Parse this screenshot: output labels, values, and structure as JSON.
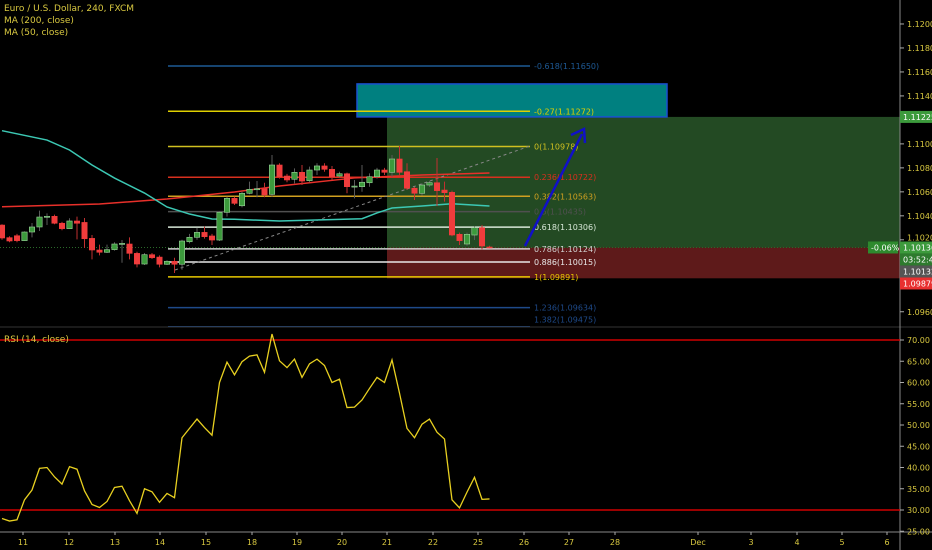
{
  "header": {
    "symbol_title": "Euro / U.S. Dollar, 240, FXCM",
    "indicators": [
      "MA (200, close)",
      "MA (50, close)"
    ]
  },
  "rsi_panel": {
    "title": "RSI (14, close)",
    "upper_band": 70,
    "lower_band": 30
  },
  "colors": {
    "background": "#000000",
    "up_candle": "#3c9a3c",
    "down_candle": "#f03c3c",
    "ma200": "#e8302a",
    "ma50": "#3cc8b4",
    "rsi_line": "#e8d020",
    "axis_text": "#d8c840",
    "profit_zone": "#234a23",
    "stop_zone": "#5e1a1a",
    "target_box": "#008080",
    "arrow": "#1010c8"
  },
  "price_axis": {
    "ticks": [
      "1.12000",
      "1.11800",
      "1.11600",
      "1.11400",
      "1.11000",
      "1.10800",
      "1.10600",
      "1.10400",
      "1.10200",
      "1.09600"
    ],
    "labels": {
      "target": "1.11225",
      "change_pct": "-0.06%",
      "last_price": "1.10136",
      "countdown": "03:52:47",
      "bid": "1.10132",
      "stop": "1.09879"
    }
  },
  "rsi_axis": {
    "ticks": [
      "70.00",
      "65.00",
      "60.00",
      "55.00",
      "50.00",
      "45.00",
      "40.00",
      "35.00",
      "30.00",
      "25.00"
    ]
  },
  "time_axis": {
    "ticks": [
      "11",
      "12",
      "13",
      "14",
      "15",
      "18",
      "19",
      "20",
      "21",
      "22",
      "25",
      "26",
      "27",
      "28",
      "Dec",
      "3",
      "4",
      "5",
      "6"
    ]
  },
  "fibonacci": [
    {
      "label": "-0.618(1.11650)",
      "price": 1.1165,
      "color": "#1e5a96"
    },
    {
      "label": "-0.27(1.11272)",
      "price": 1.11272,
      "color": "#e0d000"
    },
    {
      "label": "0(1.10978)",
      "price": 1.10978,
      "color": "#d0c020"
    },
    {
      "label": "0.236(1.10722)",
      "price": 1.10722,
      "color": "#d8301e"
    },
    {
      "label": "0.382(1.10563)",
      "price": 1.10563,
      "color": "#d0a020"
    },
    {
      "label": "0.5(1.10435)",
      "price": 1.10435,
      "color": "#505050"
    },
    {
      "label": "0.618(1.10306)",
      "price": 1.10306,
      "color": "#d8e8d8"
    },
    {
      "label": "0.786(1.10124)",
      "price": 1.10124,
      "color": "#d0d0d0"
    },
    {
      "label": "0.886(1.10015)",
      "price": 1.10015,
      "color": "#e8e8e8"
    },
    {
      "label": "1(1.09891)",
      "price": 1.09891,
      "color": "#e8c800"
    },
    {
      "label": "1.236(1.09634)",
      "price": 1.09634,
      "color": "#1e4a8a"
    },
    {
      "label": "1.382(1.09475)",
      "price": 1.09475,
      "color": "#1e4a8a"
    }
  ],
  "position_tool": {
    "entry": 1.10136,
    "target": 1.11225,
    "stop": 1.09879,
    "target_zone_top": 1.115,
    "target_zone_bottom": 1.11225
  },
  "chart_data": {
    "type": "candlestick",
    "ohlc": [
      [
        1.10323,
        1.1033,
        1.102,
        1.10215
      ],
      [
        1.10218,
        1.1023,
        1.1018,
        1.1019
      ],
      [
        1.10234,
        1.1025,
        1.1018,
        1.10193
      ],
      [
        1.10193,
        1.1027,
        1.1019,
        1.10265
      ],
      [
        1.10265,
        1.1034,
        1.1022,
        1.10307
      ],
      [
        1.10307,
        1.10443,
        1.10273,
        1.1039
      ],
      [
        1.1039,
        1.1042,
        1.10323,
        1.10396
      ],
      [
        1.10396,
        1.1041,
        1.1033,
        1.10338
      ],
      [
        1.10338,
        1.1035,
        1.1028,
        1.10293
      ],
      [
        1.10293,
        1.1038,
        1.1029,
        1.10357
      ],
      [
        1.10357,
        1.10393,
        1.10204,
        1.10338
      ],
      [
        1.10345,
        1.10382,
        1.10132,
        1.10209
      ],
      [
        1.10212,
        1.1024,
        1.10037,
        1.10115
      ],
      [
        1.10115,
        1.1016,
        1.1007,
        1.10096
      ],
      [
        1.10096,
        1.1016,
        1.1009,
        1.10118
      ],
      [
        1.10118,
        1.1018,
        1.1011,
        1.10165
      ],
      [
        1.10165,
        1.10198,
        1.10009,
        1.1017
      ],
      [
        1.10165,
        1.1022,
        1.10037,
        1.10087
      ],
      [
        1.10087,
        1.101,
        1.0997,
        1.09998
      ],
      [
        1.09998,
        1.1009,
        1.0999,
        1.10076
      ],
      [
        1.10076,
        1.1009,
        1.1004,
        1.10051
      ],
      [
        1.10056,
        1.1007,
        1.0997,
        1.09996
      ],
      [
        1.09996,
        1.1003,
        1.0999,
        1.10021
      ],
      [
        1.10021,
        1.1005,
        1.09923,
        1.09996
      ],
      [
        1.09996,
        1.102,
        1.0995,
        1.1019
      ],
      [
        1.10184,
        1.1025,
        1.1017,
        1.10221
      ],
      [
        1.10221,
        1.103,
        1.102,
        1.10262
      ],
      [
        1.10262,
        1.1031,
        1.1021,
        1.10226
      ],
      [
        1.10232,
        1.1025,
        1.10157,
        1.10198
      ],
      [
        1.10198,
        1.1044,
        1.1019,
        1.10429
      ],
      [
        1.10429,
        1.1056,
        1.10393,
        1.10546
      ],
      [
        1.10546,
        1.1056,
        1.1049,
        1.10504
      ],
      [
        1.10484,
        1.106,
        1.1047,
        1.10588
      ],
      [
        1.10588,
        1.10685,
        1.1058,
        1.10621
      ],
      [
        1.10621,
        1.1069,
        1.10555,
        1.10626
      ],
      [
        1.10626,
        1.10676,
        1.10555,
        1.10574
      ],
      [
        1.10579,
        1.10907,
        1.1056,
        1.10824
      ],
      [
        1.10824,
        1.10838,
        1.1071,
        1.10726
      ],
      [
        1.10732,
        1.1075,
        1.1068,
        1.10699
      ],
      [
        1.10705,
        1.10796,
        1.10671,
        1.10763
      ],
      [
        1.10763,
        1.10824,
        1.10657,
        1.1069
      ],
      [
        1.10693,
        1.1081,
        1.1068,
        1.10782
      ],
      [
        1.10782,
        1.10838,
        1.1074,
        1.10816
      ],
      [
        1.10816,
        1.10838,
        1.10768,
        1.10788
      ],
      [
        1.10788,
        1.10816,
        1.10699,
        1.10726
      ],
      [
        1.10732,
        1.10768,
        1.1072,
        1.10751
      ],
      [
        1.10751,
        1.1076,
        1.10588,
        1.10643
      ],
      [
        1.10643,
        1.10699,
        1.10546,
        1.10648
      ],
      [
        1.10643,
        1.10824,
        1.10601,
        1.1068
      ],
      [
        1.10676,
        1.10754,
        1.10643,
        1.10726
      ],
      [
        1.10726,
        1.108,
        1.1071,
        1.10782
      ],
      [
        1.10782,
        1.108,
        1.1074,
        1.10763
      ],
      [
        1.10763,
        1.10907,
        1.10726,
        1.10874
      ],
      [
        1.10874,
        1.10982,
        1.1074,
        1.10763
      ],
      [
        1.10768,
        1.10838,
        1.10615,
        1.1063
      ],
      [
        1.1063,
        1.1064,
        1.10532,
        1.10588
      ],
      [
        1.10588,
        1.10671,
        1.1057,
        1.10657
      ],
      [
        1.10657,
        1.1069,
        1.1064,
        1.10676
      ],
      [
        1.10676,
        1.10882,
        1.10482,
        1.1061
      ],
      [
        1.10615,
        1.10685,
        1.10518,
        1.10593
      ],
      [
        1.10596,
        1.1061,
        1.1023,
        1.1024
      ],
      [
        1.10246,
        1.1026,
        1.10157,
        1.10193
      ],
      [
        1.10165,
        1.1026,
        1.1015,
        1.10246
      ],
      [
        1.1024,
        1.1031,
        1.10198,
        1.10301
      ],
      [
        1.10301,
        1.10323,
        1.10121,
        1.10148
      ],
      [
        1.1014,
        1.1015,
        1.1013,
        1.10136
      ]
    ],
    "ma200": [
      [
        0,
        1.10476
      ],
      [
        13,
        1.10499
      ],
      [
        22,
        1.1054
      ],
      [
        31,
        1.10599
      ],
      [
        37,
        1.10649
      ],
      [
        47,
        1.10716
      ],
      [
        56,
        1.10741
      ],
      [
        65,
        1.10757
      ]
    ],
    "ma50": [
      [
        0,
        1.1111
      ],
      [
        6,
        1.11032
      ],
      [
        9,
        1.10949
      ],
      [
        12,
        1.10824
      ],
      [
        15,
        1.10715
      ],
      [
        19,
        1.1059
      ],
      [
        22,
        1.10474
      ],
      [
        25,
        1.10415
      ],
      [
        28,
        1.10374
      ],
      [
        31,
        1.10371
      ],
      [
        37,
        1.10357
      ],
      [
        48,
        1.10376
      ],
      [
        50,
        1.10424
      ],
      [
        52,
        1.10465
      ],
      [
        56,
        1.10482
      ],
      [
        60,
        1.10501
      ],
      [
        65,
        1.10482
      ]
    ],
    "rsi": [
      28.0,
      27.4,
      27.7,
      32.4,
      34.7,
      39.8,
      40.0,
      37.8,
      36.1,
      40.2,
      39.6,
      34.5,
      31.3,
      30.6,
      32.0,
      35.3,
      35.6,
      32.2,
      29.2,
      35.0,
      34.3,
      31.8,
      33.9,
      32.9,
      47.0,
      49.2,
      51.4,
      49.4,
      47.6,
      60.0,
      64.8,
      61.8,
      64.9,
      66.2,
      66.5,
      62.4,
      71.4,
      65.1,
      63.5,
      65.5,
      61.2,
      64.4,
      65.5,
      64.0,
      60.0,
      60.8,
      54.1,
      54.2,
      55.9,
      58.6,
      61.2,
      60.0,
      65.3,
      57.5,
      49.2,
      47.0,
      50.2,
      51.4,
      48.3,
      46.7,
      32.4,
      30.5,
      34.2,
      37.7,
      32.5,
      32.6
    ],
    "price_range": [
      1.0945,
      1.122
    ],
    "rsi_range": [
      25,
      73
    ]
  }
}
